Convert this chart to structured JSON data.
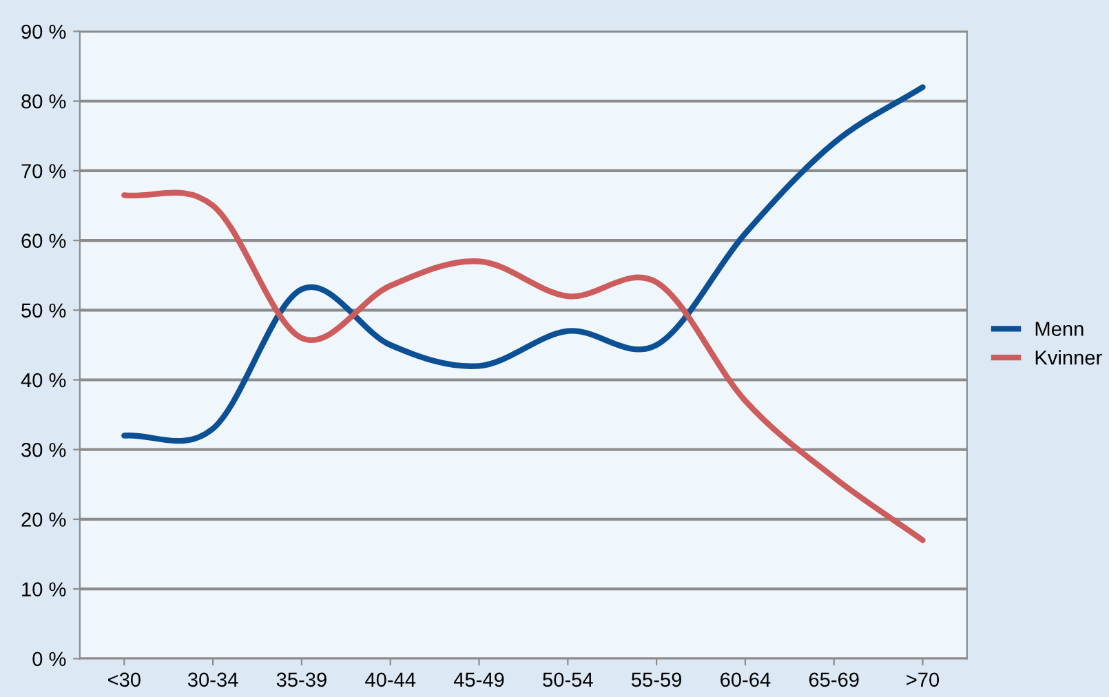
{
  "chart_data": {
    "type": "line",
    "categories": [
      "<30",
      "30-34",
      "35-39",
      "40-44",
      "45-49",
      "50-54",
      "55-59",
      "60-64",
      "65-69",
      ">70"
    ],
    "series": [
      {
        "name": "Menn",
        "color": "#0b4f94",
        "values": [
          32,
          33,
          53,
          45,
          42,
          47,
          45,
          61,
          74,
          82
        ]
      },
      {
        "name": "Kvinner",
        "color": "#cd5c5c",
        "values": [
          66.5,
          65,
          46,
          53.5,
          57,
          52,
          54,
          37,
          26,
          17
        ]
      }
    ],
    "ylim": [
      0,
      90
    ],
    "yticks": [
      {
        "value": 0,
        "label": "0 %"
      },
      {
        "value": 10,
        "label": "10 %"
      },
      {
        "value": 20,
        "label": "20 %"
      },
      {
        "value": 30,
        "label": "30 %"
      },
      {
        "value": 40,
        "label": "40 %"
      },
      {
        "value": 50,
        "label": "50 %"
      },
      {
        "value": 60,
        "label": "60 %"
      },
      {
        "value": 70,
        "label": "70 %"
      },
      {
        "value": 80,
        "label": "80 %"
      },
      {
        "value": 90,
        "label": "90 %"
      }
    ],
    "grid": "y",
    "legend": "right",
    "marker": "none",
    "line_style": "solid"
  }
}
